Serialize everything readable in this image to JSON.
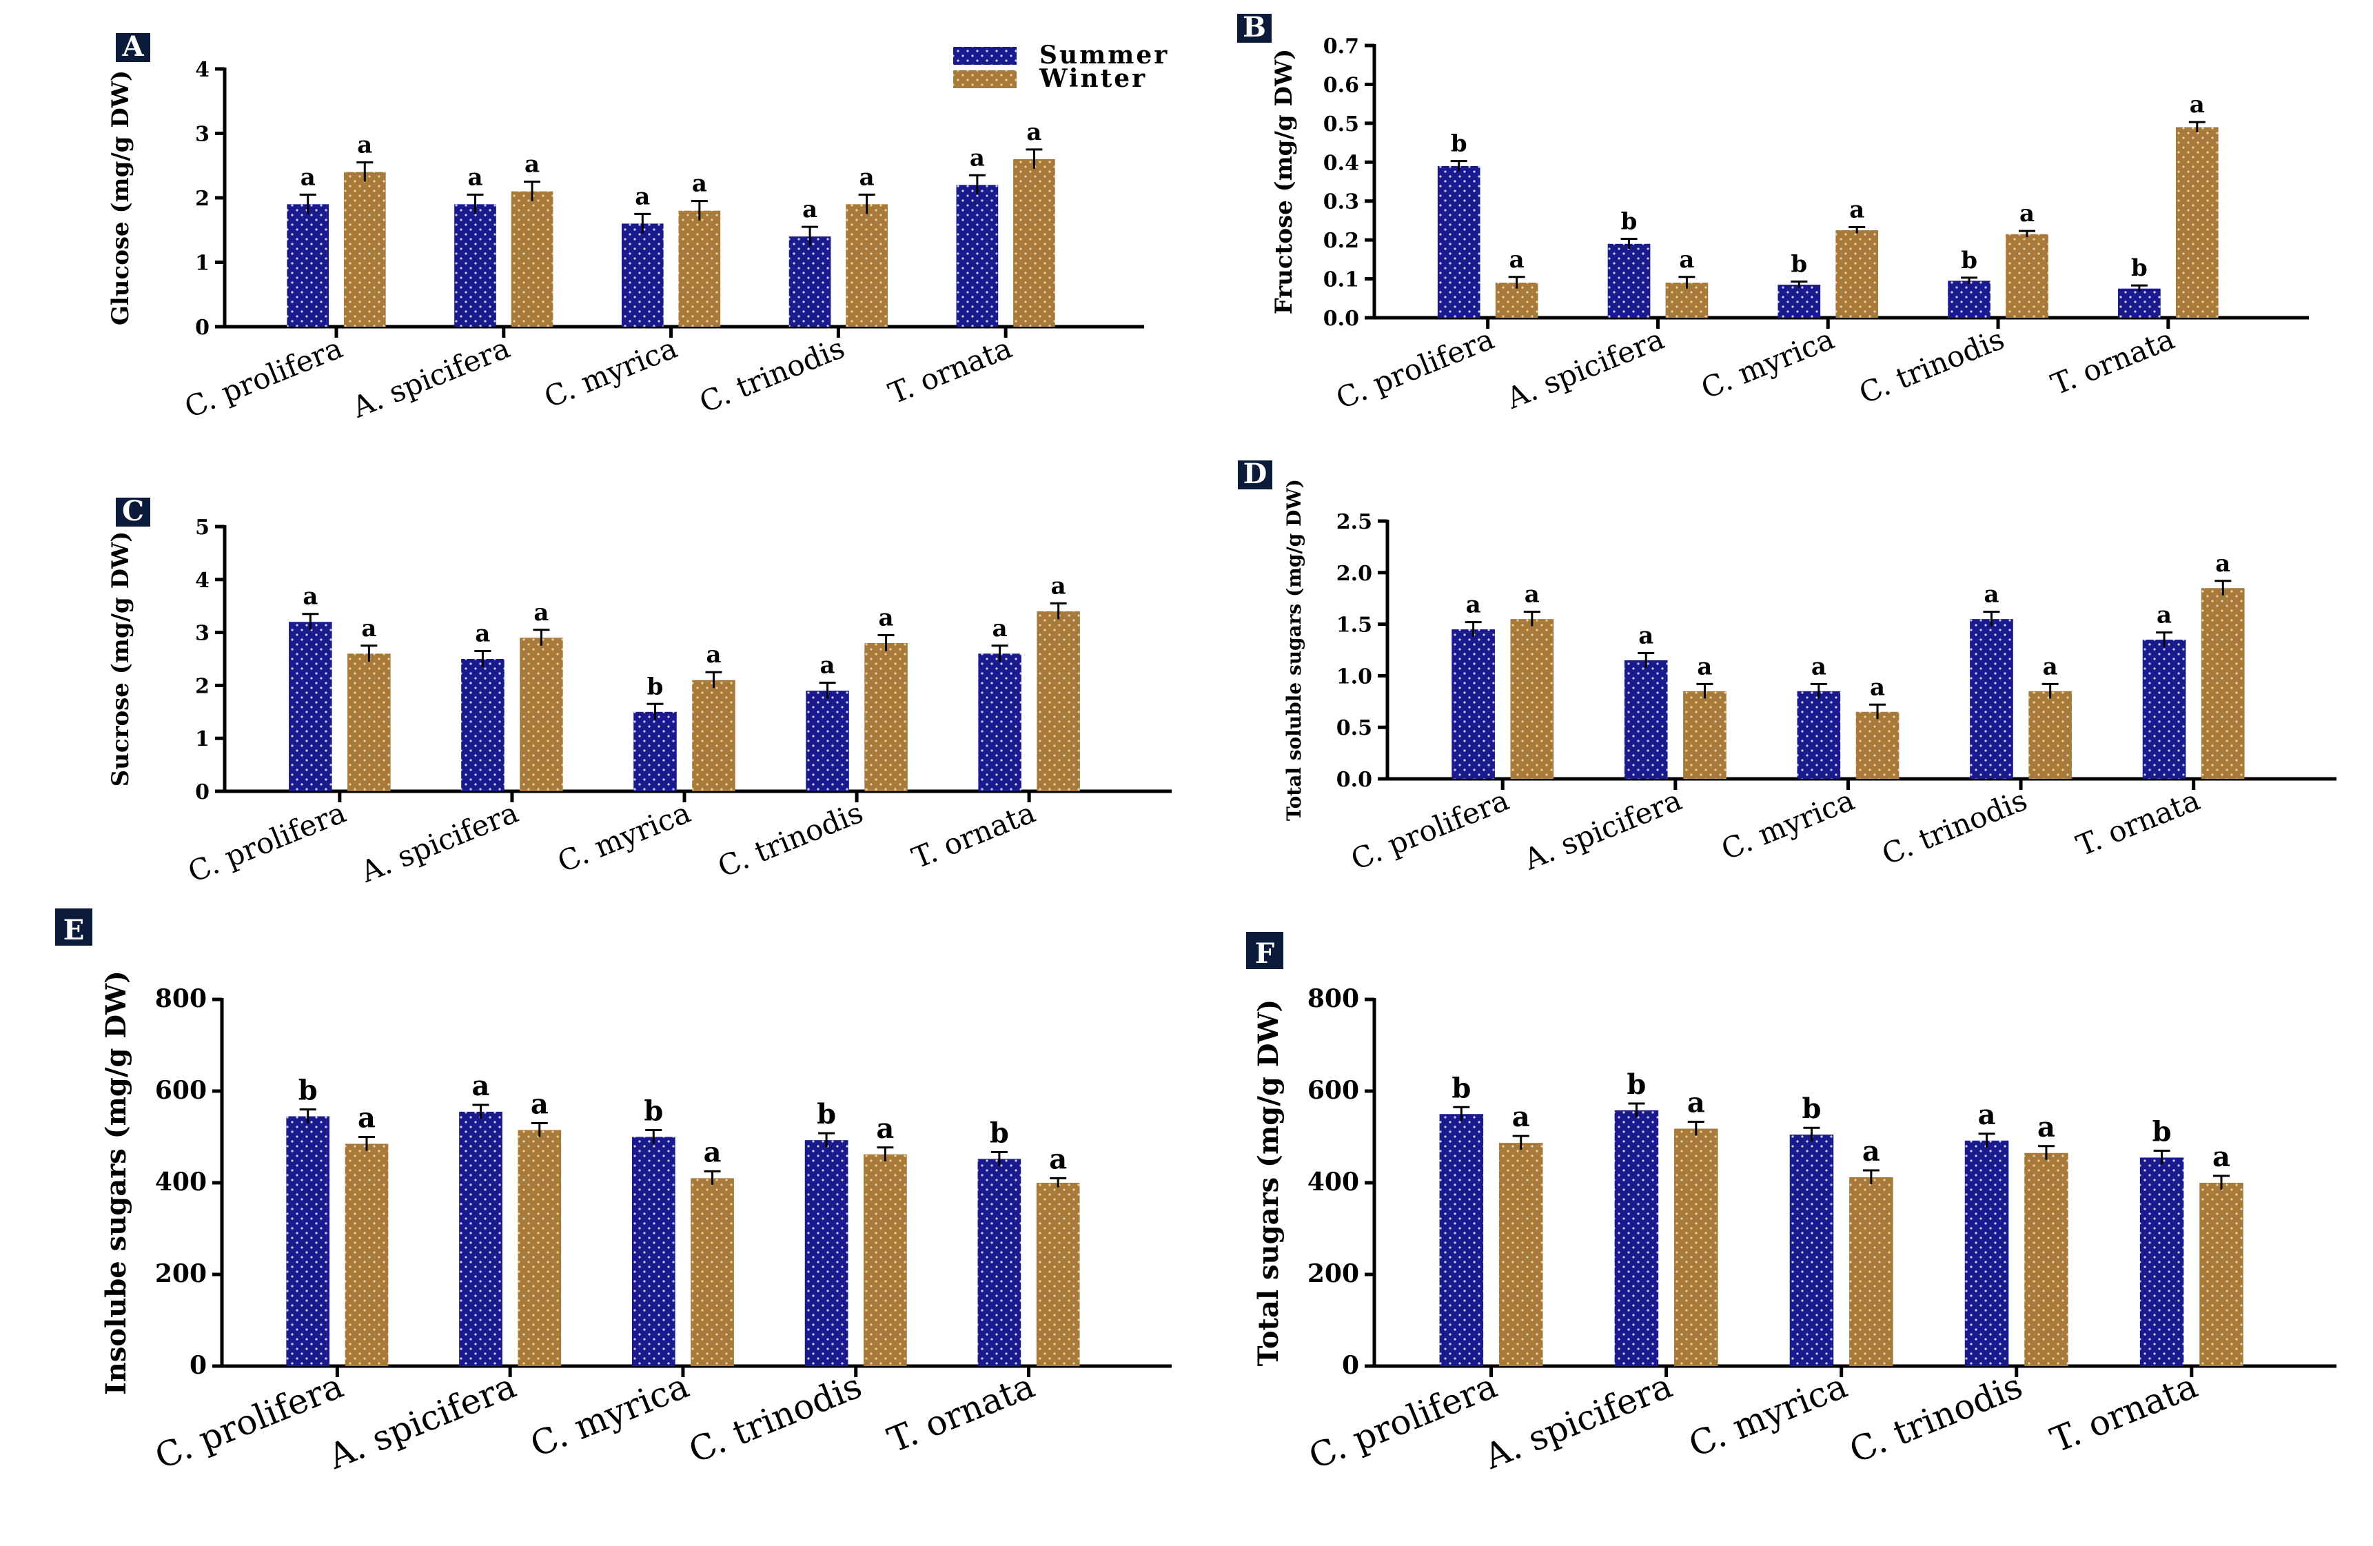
{
  "colors": {
    "summer": "#1a1a8c",
    "winter": "#a87a3a",
    "dot": "#c8d0ff",
    "label_bg": "#0d1b3a"
  },
  "legend": {
    "labels": [
      "Summer",
      "Winter"
    ]
  },
  "chart_data": [
    {
      "panel": "A",
      "type": "bar",
      "ylabel": "Glucose (mg/g DW)",
      "ylim": [
        0,
        4
      ],
      "yticks": [
        "0",
        "1",
        "2",
        "3",
        "4"
      ],
      "categories": [
        "C. prolifera",
        "A. spicifera",
        "C. myrica",
        "C. trinodis",
        "T. ornata"
      ],
      "series": [
        {
          "name": "Summer",
          "values": [
            1.9,
            1.9,
            1.6,
            1.4,
            2.2
          ],
          "errors": [
            0.15,
            0.15,
            0.15,
            0.15,
            0.15
          ],
          "letters": [
            "a",
            "a",
            "a",
            "a",
            "a"
          ]
        },
        {
          "name": "Winter",
          "values": [
            2.4,
            2.1,
            1.8,
            1.9,
            2.6
          ],
          "errors": [
            0.15,
            0.15,
            0.15,
            0.15,
            0.15
          ],
          "letters": [
            "a",
            "a",
            "a",
            "a",
            "a"
          ]
        }
      ]
    },
    {
      "panel": "B",
      "type": "bar",
      "ylabel": "Fructose (mg/g DW)",
      "ylim": [
        0,
        0.7
      ],
      "yticks": [
        "0.0",
        "0.1",
        "0.2",
        "0.3",
        "0.4",
        "0.5",
        "0.6",
        "0.7"
      ],
      "categories": [
        "C. prolifera",
        "A. spicifera",
        "C. myrica",
        "C. trinodis",
        "T. ornata"
      ],
      "series": [
        {
          "name": "Summer",
          "values": [
            0.39,
            0.19,
            0.085,
            0.095,
            0.075
          ],
          "errors": [
            0.013,
            0.013,
            0.008,
            0.008,
            0.008
          ],
          "letters": [
            "b",
            "b",
            "b",
            "b",
            "b"
          ]
        },
        {
          "name": "Winter",
          "values": [
            0.09,
            0.09,
            0.225,
            0.215,
            0.49
          ],
          "errors": [
            0.015,
            0.015,
            0.008,
            0.008,
            0.013
          ],
          "letters": [
            "a",
            "a",
            "a",
            "a",
            "a"
          ]
        }
      ]
    },
    {
      "panel": "C",
      "type": "bar",
      "ylabel": "Sucrose (mg/g DW)",
      "ylim": [
        0,
        5
      ],
      "yticks": [
        "0",
        "1",
        "2",
        "3",
        "4",
        "5"
      ],
      "categories": [
        "C. prolifera",
        "A. spicifera",
        "C. myrica",
        "C. trinodis",
        "T. ornata"
      ],
      "series": [
        {
          "name": "Summer",
          "values": [
            3.2,
            2.5,
            1.5,
            1.9,
            2.6
          ],
          "errors": [
            0.15,
            0.15,
            0.15,
            0.15,
            0.15
          ],
          "letters": [
            "a",
            "a",
            "b",
            "a",
            "a"
          ]
        },
        {
          "name": "Winter",
          "values": [
            2.6,
            2.9,
            2.1,
            2.8,
            3.4
          ],
          "errors": [
            0.15,
            0.15,
            0.15,
            0.15,
            0.15
          ],
          "letters": [
            "a",
            "a",
            "a",
            "a",
            "a"
          ]
        }
      ]
    },
    {
      "panel": "D",
      "type": "bar",
      "ylabel": "Total soluble sugars (mg/g DW)",
      "ylim": [
        0,
        2.5
      ],
      "yticks": [
        "0.0",
        "0.5",
        "1.0",
        "1.5",
        "2.0",
        "2.5"
      ],
      "categories": [
        "C. prolifera",
        "A. spicifera",
        "C. myrica",
        "C. trinodis",
        "T. ornata"
      ],
      "series": [
        {
          "name": "Summer",
          "values": [
            1.45,
            1.15,
            0.85,
            1.55,
            1.35
          ],
          "errors": [
            0.07,
            0.07,
            0.07,
            0.07,
            0.07
          ],
          "letters": [
            "a",
            "a",
            "a",
            "a",
            "a"
          ]
        },
        {
          "name": "Winter",
          "values": [
            1.55,
            0.85,
            0.65,
            0.85,
            1.85
          ],
          "errors": [
            0.07,
            0.07,
            0.07,
            0.07,
            0.07
          ],
          "letters": [
            "a",
            "a",
            "a",
            "a",
            "a"
          ]
        }
      ]
    },
    {
      "panel": "E",
      "type": "bar",
      "ylabel": "Insolube sugars (mg/g DW)",
      "ylim": [
        0,
        800
      ],
      "yticks": [
        "0",
        "200",
        "400",
        "600",
        "800"
      ],
      "categories": [
        "C. prolifera",
        "A. spicifera",
        "C. myrica",
        "C. trinodis",
        "T. ornata"
      ],
      "series": [
        {
          "name": "Summer",
          "values": [
            545,
            555,
            500,
            493,
            452
          ],
          "errors": [
            15,
            15,
            15,
            15,
            15
          ],
          "letters": [
            "b",
            "a",
            "b",
            "b",
            "b"
          ]
        },
        {
          "name": "Winter",
          "values": [
            485,
            515,
            410,
            462,
            400
          ],
          "errors": [
            15,
            15,
            15,
            15,
            10
          ],
          "letters": [
            "a",
            "a",
            "a",
            "a",
            "a"
          ]
        }
      ]
    },
    {
      "panel": "F",
      "type": "bar",
      "ylabel": "Total sugars (mg/g DW)",
      "ylim": [
        0,
        800
      ],
      "yticks": [
        "0",
        "200",
        "400",
        "600",
        "800"
      ],
      "categories": [
        "C. prolifera",
        "A. spicifera",
        "C. myrica",
        "C. trinodis",
        "T. ornata"
      ],
      "series": [
        {
          "name": "Summer",
          "values": [
            550,
            558,
            505,
            492,
            455
          ],
          "errors": [
            15,
            15,
            15,
            15,
            15
          ],
          "letters": [
            "b",
            "b",
            "b",
            "a",
            "b"
          ]
        },
        {
          "name": "Winter",
          "values": [
            487,
            518,
            412,
            465,
            400
          ],
          "errors": [
            15,
            15,
            15,
            15,
            15
          ],
          "letters": [
            "a",
            "a",
            "a",
            "a",
            "a"
          ]
        }
      ]
    }
  ]
}
